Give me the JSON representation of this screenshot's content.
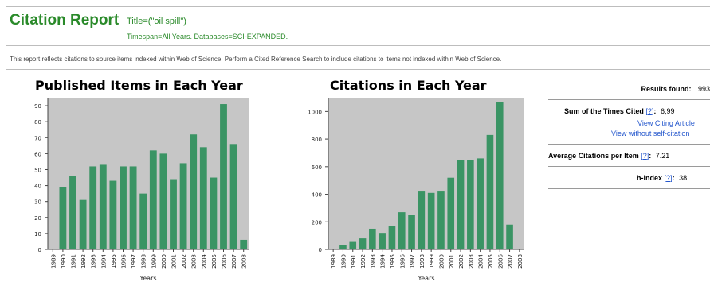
{
  "header": {
    "title": "Citation Report",
    "query": "Title=(\"oil spill\")",
    "timespan": "Timespan=All Years. Databases=SCI-EXPANDED.",
    "note": "This report reflects citations to source items indexed within Web of Science. Perform a Cited Reference Search to include citations to items not indexed within Web of Science."
  },
  "stats": {
    "results_label": "Results found:",
    "results_value": "993",
    "sum_label": "Sum of the Times Cited",
    "help": "?",
    "sum_value": "6,99",
    "view_citing": "View Citing Article",
    "view_without": "View without self-citation",
    "avg_label": "Average Citations per Item",
    "avg_value": "7.21",
    "hindex_label": "h-index",
    "hindex_value": "38"
  },
  "chart_data": [
    {
      "type": "bar",
      "title": "Published Items in Each Year",
      "xlabel": "Years",
      "ylabel": "",
      "ylim": [
        0,
        95
      ],
      "yticks": [
        0,
        10,
        20,
        30,
        40,
        50,
        60,
        70,
        80,
        90
      ],
      "categories": [
        "1989",
        "1990",
        "1991",
        "1992",
        "1993",
        "1994",
        "1995",
        "1996",
        "1997",
        "1998",
        "1999",
        "2000",
        "2001",
        "2002",
        "2003",
        "2004",
        "2005",
        "2006",
        "2007",
        "2008"
      ],
      "values": [
        0,
        39,
        46,
        31,
        52,
        53,
        43,
        52,
        52,
        35,
        62,
        60,
        44,
        54,
        72,
        64,
        45,
        91,
        66,
        6
      ],
      "colors": {
        "bar": "#3a9464",
        "plot_bg": "#c6c6c6"
      }
    },
    {
      "type": "bar",
      "title": "Citations in Each Year",
      "xlabel": "Years",
      "ylabel": "",
      "ylim": [
        0,
        1100
      ],
      "yticks": [
        0,
        200,
        400,
        600,
        800,
        1000
      ],
      "categories": [
        "1989",
        "1990",
        "1991",
        "1992",
        "1993",
        "1994",
        "1995",
        "1996",
        "1997",
        "1998",
        "1999",
        "2000",
        "2001",
        "2002",
        "2003",
        "2004",
        "2005",
        "2006",
        "2007",
        "2008"
      ],
      "values": [
        0,
        30,
        60,
        80,
        150,
        120,
        170,
        270,
        250,
        420,
        410,
        420,
        520,
        650,
        650,
        660,
        830,
        1070,
        180,
        0
      ],
      "colors": {
        "bar": "#3a9464",
        "plot_bg": "#c6c6c6"
      }
    }
  ]
}
